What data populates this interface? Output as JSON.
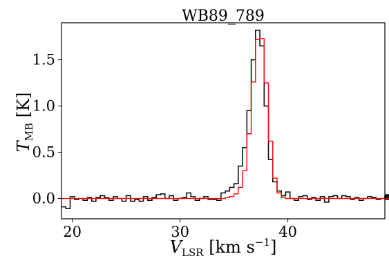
{
  "chart_data": {
    "type": "line",
    "title": "WB89_789",
    "xlabel_main": "V",
    "xlabel_sub": "LSR",
    "xlabel_unit_open": " [km s",
    "xlabel_unit_sup": "−1",
    "xlabel_unit_close": "]",
    "ylabel_main": "T",
    "ylabel_sub": "MB",
    "ylabel_unit": " [K]",
    "xlim": [
      19,
      49
    ],
    "ylim": [
      -0.22,
      1.9
    ],
    "x_ticks": [
      20,
      30,
      40
    ],
    "x_tick_labels": [
      "20",
      "30",
      "40"
    ],
    "y_ticks": [
      0.0,
      0.5,
      1.0,
      1.5
    ],
    "y_tick_labels": [
      "0.0",
      "0.5",
      "1.0",
      "1.5"
    ],
    "grid": false,
    "channel_width": 0.4,
    "x_start": 19.0,
    "series": [
      {
        "color": "#000000",
        "style": "steps",
        "values": [
          -0.09,
          -0.11,
          0.02,
          -0.01,
          0.0,
          -0.02,
          0.01,
          -0.03,
          0.01,
          0.03,
          0.01,
          -0.02,
          0.02,
          0.0,
          -0.03,
          0.03,
          -0.03,
          -0.01,
          -0.03,
          0.02,
          -0.02,
          0.01,
          0.04,
          0.05,
          0.0,
          0.03,
          -0.02,
          0.0,
          0.01,
          0.06,
          0.02,
          -0.02,
          0.0,
          0.02,
          -0.01,
          -0.01,
          -0.02,
          0.06,
          0.08,
          0.12,
          0.16,
          0.35,
          0.55,
          0.95,
          1.5,
          1.82,
          1.65,
          1.0,
          0.42,
          0.18,
          0.08,
          0.03,
          0.07,
          0.0,
          -0.02,
          0.02,
          0.03,
          -0.01,
          0.01,
          -0.02,
          0.02,
          -0.04,
          0.02,
          0.03,
          0.0,
          0.03,
          0.02,
          -0.01,
          0.01,
          -0.02,
          0.0,
          0.02,
          0.01,
          -0.01,
          0.0,
          0.02,
          0.01,
          0.01,
          0.0,
          -0.01,
          0.04,
          0.0,
          0.03,
          -0.01,
          0.01
        ]
      },
      {
        "color": "#ff0000",
        "style": "steps",
        "values": [
          0.0,
          0.0,
          0.0,
          0.0,
          0.0,
          0.0,
          0.0,
          0.0,
          0.0,
          0.0,
          0.0,
          0.0,
          0.0,
          0.0,
          0.0,
          0.0,
          0.0,
          0.0,
          0.0,
          0.0,
          0.0,
          0.0,
          0.0,
          0.0,
          0.0,
          0.0,
          0.0,
          0.0,
          0.0,
          0.0,
          0.0,
          0.0,
          0.0,
          0.0,
          0.0,
          0.0,
          0.0,
          0.0,
          0.01,
          0.02,
          0.05,
          0.12,
          0.3,
          0.7,
          1.26,
          1.72,
          1.73,
          1.25,
          0.62,
          0.22,
          0.06,
          0.01,
          0.0,
          0.0,
          0.0,
          0.0,
          0.0,
          0.0,
          0.0,
          0.0,
          0.0,
          0.0,
          0.0,
          0.0,
          0.0,
          0.0,
          0.0,
          0.0,
          0.0,
          0.0,
          0.0,
          0.0,
          0.0,
          0.0,
          0.0,
          0.0,
          0.0,
          0.0,
          0.0,
          0.0,
          0.0,
          0.0,
          0.0,
          0.0,
          0.0
        ]
      }
    ]
  }
}
